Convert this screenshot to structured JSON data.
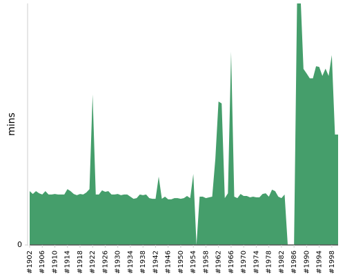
{
  "chart_data": {
    "type": "area",
    "ylabel": "mins",
    "color": "#459e6b",
    "grid": false,
    "x": [
      1902,
      1903,
      1904,
      1905,
      1906,
      1907,
      1908,
      1909,
      1910,
      1911,
      1912,
      1913,
      1914,
      1915,
      1916,
      1917,
      1918,
      1919,
      1920,
      1921,
      1922,
      1923,
      1924,
      1925,
      1926,
      1927,
      1928,
      1929,
      1930,
      1931,
      1932,
      1933,
      1934,
      1935,
      1936,
      1937,
      1938,
      1939,
      1940,
      1941,
      1942,
      1943,
      1944,
      1945,
      1946,
      1947,
      1948,
      1949,
      1950,
      1951,
      1952,
      1953,
      1954,
      1955,
      1956,
      1957,
      1958,
      1959,
      1960,
      1961,
      1962,
      1963,
      1964,
      1965,
      1966,
      1967,
      1968,
      1969,
      1970,
      1971,
      1972,
      1973,
      1974,
      1975,
      1976,
      1977,
      1978,
      1979,
      1980,
      1981,
      1982,
      1983,
      1984,
      1985,
      1986,
      1987,
      1988,
      1989,
      1990,
      1991,
      1992,
      1993,
      1994,
      1995,
      1996,
      1997,
      1998,
      1999,
      2000
    ],
    "values": [
      22.3,
      21.1,
      22.3,
      21.4,
      20.9,
      22.3,
      20.9,
      20.9,
      21.1,
      20.9,
      20.9,
      20.9,
      23.1,
      22.3,
      21.1,
      20.6,
      21.1,
      20.9,
      21.7,
      23.1,
      62.3,
      20.9,
      20.9,
      22.6,
      22,
      22.3,
      20.9,
      20.9,
      21.1,
      20.6,
      20.9,
      20.9,
      20,
      19.1,
      19.4,
      20.9,
      20.6,
      20.9,
      19.4,
      19.1,
      19.1,
      28.3,
      19.1,
      20,
      18.9,
      18.9,
      19.4,
      19.4,
      19.1,
      19.4,
      20.3,
      19.4,
      29.4,
      0,
      20,
      20,
      19.4,
      19.7,
      20,
      35.7,
      59.4,
      58.6,
      19.4,
      21.4,
      80,
      20,
      19.4,
      21.1,
      20.3,
      20.3,
      19.7,
      20,
      19.7,
      19.7,
      21.1,
      21.4,
      20,
      22.9,
      22.3,
      20,
      19.4,
      20.9,
      0,
      0,
      0,
      105,
      105,
      72.9,
      71,
      69,
      69,
      74,
      73.7,
      70,
      73,
      70,
      78.6,
      45.7,
      45.7
    ],
    "xlim": [
      1902,
      2000
    ],
    "xticks": [
      {
        "value": 1902,
        "label": "#1902"
      },
      {
        "value": 1906,
        "label": "#1906"
      },
      {
        "value": 1910,
        "label": "#1910"
      },
      {
        "value": 1914,
        "label": "#1914"
      },
      {
        "value": 1918,
        "label": "#1918"
      },
      {
        "value": 1922,
        "label": "#1922"
      },
      {
        "value": 1926,
        "label": "#1926"
      },
      {
        "value": 1930,
        "label": "#1930"
      },
      {
        "value": 1934,
        "label": "#1934"
      },
      {
        "value": 1938,
        "label": "#1938"
      },
      {
        "value": 1942,
        "label": "#1942"
      },
      {
        "value": 1946,
        "label": "#1946"
      },
      {
        "value": 1950,
        "label": "#1950"
      },
      {
        "value": 1954,
        "label": "#1954"
      },
      {
        "value": 1958,
        "label": "#1958"
      },
      {
        "value": 1962,
        "label": "#1962"
      },
      {
        "value": 1966,
        "label": "#1966"
      },
      {
        "value": 1970,
        "label": "#1970"
      },
      {
        "value": 1974,
        "label": "#1974"
      },
      {
        "value": 1978,
        "label": "#1978"
      },
      {
        "value": 1982,
        "label": "#1982"
      },
      {
        "value": 1986,
        "label": "#1986"
      },
      {
        "value": 1990,
        "label": "#1990"
      },
      {
        "value": 1994,
        "label": "#1994"
      },
      {
        "value": 1998,
        "label": "#1998"
      }
    ],
    "ylim": [
      0,
      100
    ],
    "yticks": [
      0
    ]
  }
}
